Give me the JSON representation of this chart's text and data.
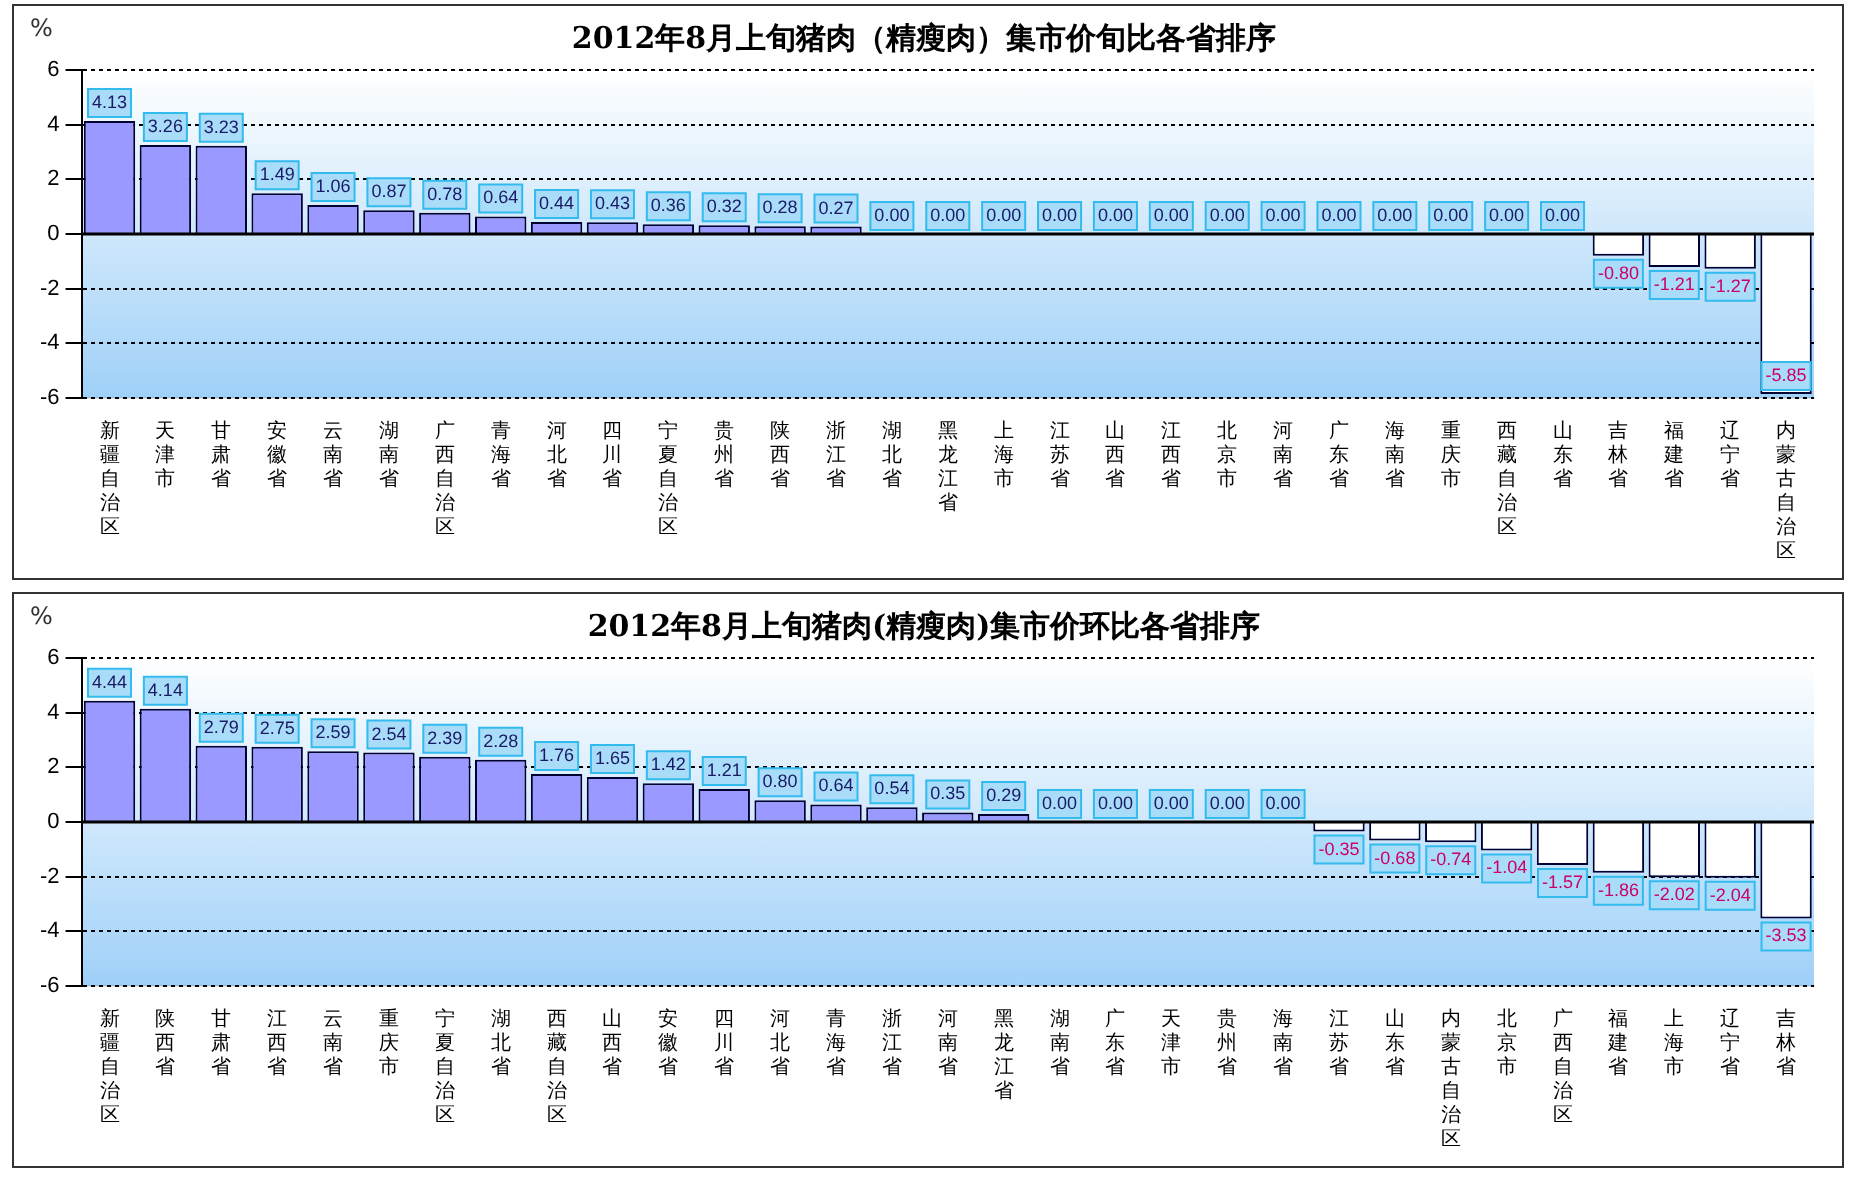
{
  "chart_data": [
    {
      "type": "bar",
      "title": "2012年8月上旬猪肉（精瘦肉）集市价旬比各省排序",
      "ylabel": "%",
      "categories": [
        "新疆自治区",
        "天津市",
        "甘肃省",
        "安徽省",
        "云南省",
        "湖南省",
        "广西自治区",
        "青海省",
        "河北省",
        "四川省",
        "宁夏自治区",
        "贵州省",
        "陕西省",
        "浙江省",
        "湖北省",
        "黑龙江省",
        "上海市",
        "江苏省",
        "山西省",
        "江西省",
        "北京市",
        "河南省",
        "广东省",
        "海南省",
        "重庆市",
        "西藏自治区",
        "山东省",
        "吉林省",
        "福建省",
        "辽宁省",
        "内蒙古自治区"
      ],
      "values": [
        4.13,
        3.26,
        3.23,
        1.49,
        1.06,
        0.87,
        0.78,
        0.64,
        0.44,
        0.43,
        0.36,
        0.32,
        0.28,
        0.27,
        0,
        0,
        0,
        0,
        0,
        0,
        0,
        0,
        0,
        0,
        0,
        0,
        0,
        -0.8,
        -1.21,
        -1.27,
        -5.85
      ],
      "value_labels": [
        "4.13",
        "3.26",
        "3.23",
        "1.49",
        "1.06",
        "0.87",
        "0.78",
        "0.64",
        "0.44",
        "0.43",
        "0.36",
        "0.32",
        "0.28",
        "0.27",
        "0.00",
        "0.00",
        "0.00",
        "0.00",
        "0.00",
        "0.00",
        "0.00",
        "0.00",
        "0.00",
        "0.00",
        "0.00",
        "0.00",
        "0.00",
        "-0.80",
        "-1.21",
        "-1.27",
        "-5.85"
      ],
      "colors": [
        "#9999ff",
        "#9999ff",
        "#9999ff",
        "#9999ff",
        "#9999ff",
        "#9999ff",
        "#9999ff",
        "#9999ff",
        "#9999ff",
        "#9999ff",
        "#9999ff",
        "#9999ff",
        "#9999ff",
        "#9999ff",
        "#9999ff",
        "#9999ff",
        "#9999ff",
        "#9999ff",
        "#9999ff",
        "#9999ff",
        "#9999ff",
        "#9999ff",
        "#9999ff",
        "#9999ff",
        "#9999ff",
        "#9999ff",
        "#9999ff",
        "#ffffff",
        "#ffffff",
        "#ffffff",
        "#ffffff"
      ],
      "ylim": [
        -6,
        6
      ],
      "yticks": [
        -6,
        -4,
        -2,
        0,
        2,
        4,
        6
      ],
      "grid": "y",
      "legend": false
    },
    {
      "type": "bar",
      "title": "2012年8月上旬猪肉(精瘦肉)集市价环比各省排序",
      "ylabel": "%",
      "categories": [
        "新疆自治区",
        "陕西省",
        "甘肃省",
        "江西省",
        "云南省",
        "重庆市",
        "宁夏自治区",
        "湖北省",
        "西藏自治区",
        "山西省",
        "安徽省",
        "四川省",
        "河北省",
        "青海省",
        "浙江省",
        "河南省",
        "黑龙江省",
        "湖南省",
        "广东省",
        "天津市",
        "贵州省",
        "海南省",
        "江苏省",
        "山东省",
        "内蒙古自治区",
        "北京市",
        "广西自治区",
        "福建省",
        "上海市",
        "辽宁省",
        "吉林省"
      ],
      "values": [
        4.44,
        4.14,
        2.79,
        2.75,
        2.59,
        2.54,
        2.39,
        2.28,
        1.76,
        1.65,
        1.42,
        1.21,
        0.8,
        0.64,
        0.54,
        0.35,
        0.29,
        0,
        0,
        0,
        0,
        0,
        -0.35,
        -0.68,
        -0.74,
        -1.04,
        -1.57,
        -1.86,
        -2.02,
        -2.04,
        -3.53
      ],
      "value_labels": [
        "4.44",
        "4.14",
        "2.79",
        "2.75",
        "2.59",
        "2.54",
        "2.39",
        "2.28",
        "1.76",
        "1.65",
        "1.42",
        "1.21",
        "0.80",
        "0.64",
        "0.54",
        "0.35",
        "0.29",
        "0.00",
        "0.00",
        "0.00",
        "0.00",
        "0.00",
        "-0.35",
        "-0.68",
        "-0.74",
        "-1.04",
        "-1.57",
        "-1.86",
        "-2.02",
        "-2.04",
        "-3.53"
      ],
      "colors": [
        "#9999ff",
        "#9999ff",
        "#9999ff",
        "#9999ff",
        "#9999ff",
        "#9999ff",
        "#9999ff",
        "#9999ff",
        "#9999ff",
        "#9999ff",
        "#9999ff",
        "#9999ff",
        "#9999ff",
        "#9999ff",
        "#9999ff",
        "#9999ff",
        "#9999ff",
        "#9999ff",
        "#9999ff",
        "#9999ff",
        "#9999ff",
        "#9999ff",
        "#ffffff",
        "#ffffff",
        "#ffffff",
        "#ffffff",
        "#ffffff",
        "#ffffff",
        "#ffffff",
        "#ffffff",
        "#ffffff"
      ],
      "ylim": [
        -6,
        6
      ],
      "yticks": [
        -6,
        -4,
        -2,
        0,
        2,
        4,
        6
      ],
      "grid": "y",
      "legend": false
    }
  ]
}
